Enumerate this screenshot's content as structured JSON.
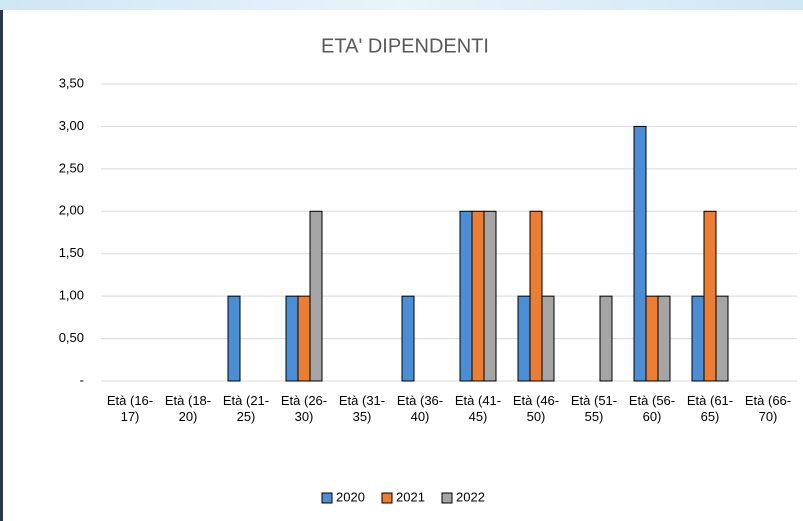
{
  "chart_data": {
    "type": "bar",
    "title": "ETA' DIPENDENTI",
    "categories": [
      "Età (16-17)",
      "Età (18-20)",
      "Età (21-25)",
      "Età (26-30)",
      "Età (31-35)",
      "Età (36-40)",
      "Età (41-45)",
      "Età (46-50)",
      "Età (51-55)",
      "Età (56-60)",
      "Età (61-65)",
      "Età (66-70)"
    ],
    "series": [
      {
        "name": "2020",
        "color": "#4a8fd6",
        "values": [
          0,
          0,
          1,
          1,
          0,
          1,
          2,
          1,
          0,
          3,
          1,
          0
        ]
      },
      {
        "name": "2021",
        "color": "#ed7d31",
        "values": [
          0,
          0,
          0,
          1,
          0,
          0,
          2,
          2,
          0,
          1,
          2,
          0
        ]
      },
      {
        "name": "2022",
        "color": "#a5a5a5",
        "values": [
          0,
          0,
          0,
          2,
          0,
          0,
          2,
          1,
          1,
          1,
          1,
          0
        ]
      }
    ],
    "ylim": [
      0,
      3.5
    ],
    "yticks": [
      {
        "value": 0,
        "label": "-"
      },
      {
        "value": 0.5,
        "label": "0,50"
      },
      {
        "value": 1,
        "label": "1,00"
      },
      {
        "value": 1.5,
        "label": "1,50"
      },
      {
        "value": 2,
        "label": "2,00"
      },
      {
        "value": 2.5,
        "label": "2,50"
      },
      {
        "value": 3,
        "label": "3,00"
      },
      {
        "value": 3.5,
        "label": "3,50"
      }
    ],
    "grid": true,
    "legend": "bottom"
  }
}
